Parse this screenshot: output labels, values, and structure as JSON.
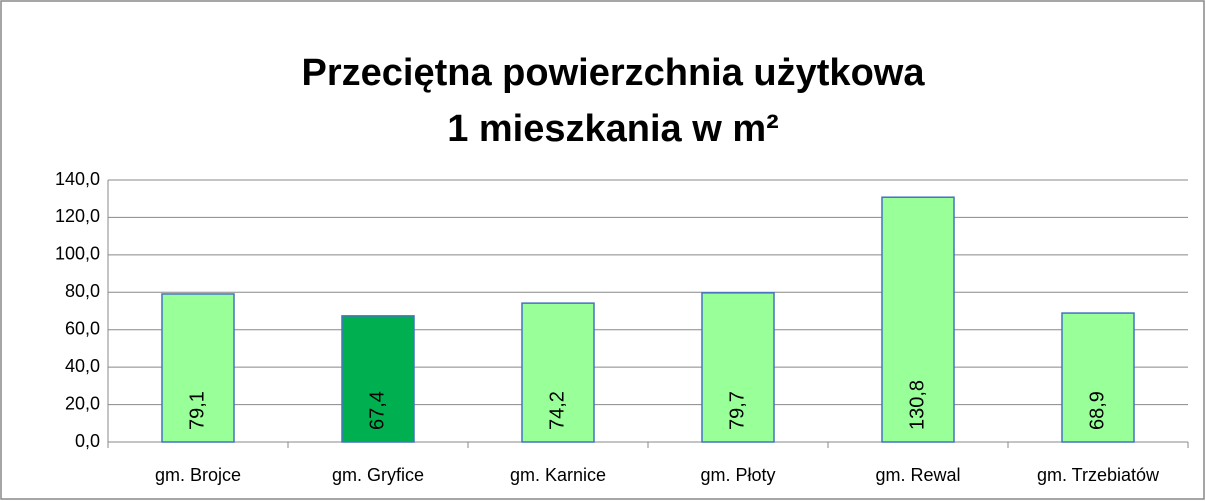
{
  "chart_data": {
    "type": "bar",
    "title": [
      "Przeciętna powierzchnia użytkowa",
      "1 mieszkania w m²"
    ],
    "categories": [
      "gm. Brojce",
      "gm. Gryfice",
      "gm. Karnice",
      "gm. Płoty",
      "gm. Rewal",
      "gm. Trzebiatów"
    ],
    "values": [
      79.1,
      67.4,
      74.2,
      79.7,
      130.8,
      68.9
    ],
    "value_labels": [
      "79,1",
      "67,4",
      "74,2",
      "79,7",
      "130,8",
      "68,9"
    ],
    "colors": [
      "#99ff99",
      "#00b050",
      "#99ff99",
      "#99ff99",
      "#99ff99",
      "#99ff99"
    ],
    "ylim": [
      0,
      140
    ],
    "yticks": [
      {
        "value": 0,
        "label": "0,0"
      },
      {
        "value": 20,
        "label": "20,0"
      },
      {
        "value": 40,
        "label": "40,0"
      },
      {
        "value": 60,
        "label": "60,0"
      },
      {
        "value": 80,
        "label": "80,0"
      },
      {
        "value": 100,
        "label": "100,0"
      },
      {
        "value": 120,
        "label": "120,0"
      },
      {
        "value": 140,
        "label": "140,0"
      }
    ],
    "grid": true
  }
}
